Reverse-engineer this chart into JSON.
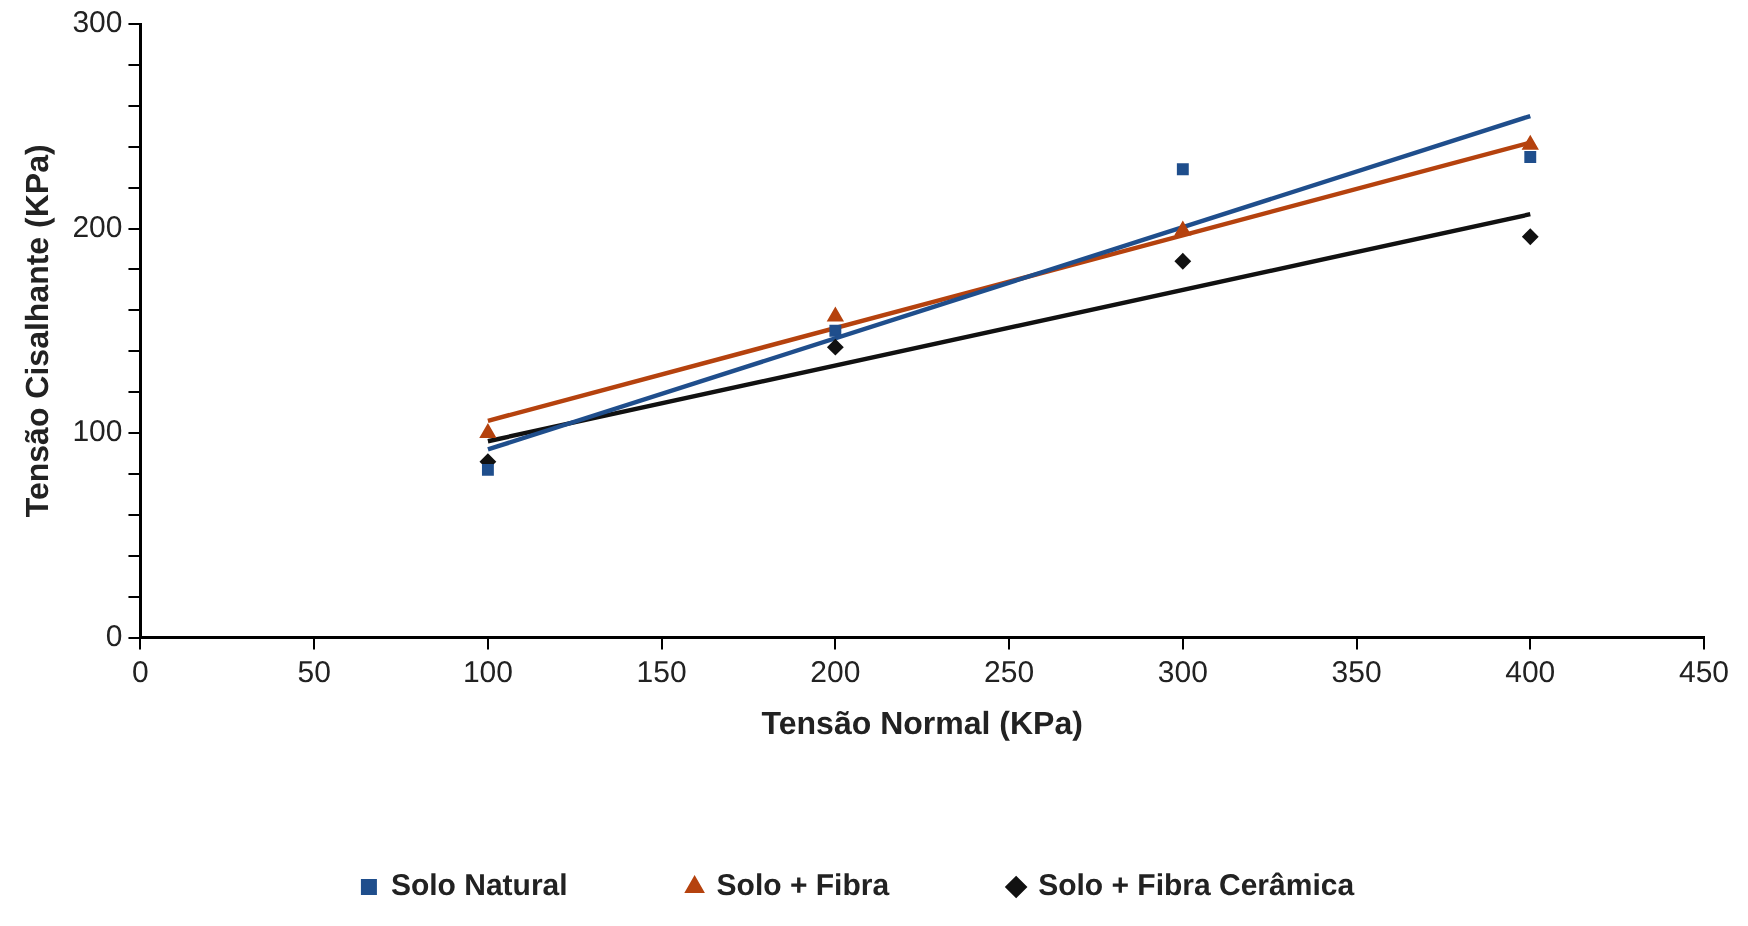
{
  "chart_data": {
    "type": "scatter",
    "xlabel": "Tensão Normal (KPa)",
    "ylabel": "Tensão Cisalhante (KPa)",
    "xlim": [
      0,
      450
    ],
    "xticks": [
      0,
      50,
      100,
      150,
      200,
      250,
      300,
      350,
      400,
      450
    ],
    "ylim": [
      0,
      300
    ],
    "yticks": [
      0,
      {
        "value": 20,
        "label": null
      },
      {
        "value": 40,
        "label": null
      },
      {
        "value": 60,
        "label": null
      },
      {
        "value": 80,
        "label": null
      },
      100,
      {
        "value": 120,
        "label": null
      },
      {
        "value": 140,
        "label": null
      },
      {
        "value": 160,
        "label": null
      },
      {
        "value": 180,
        "label": null
      },
      200,
      {
        "value": 220,
        "label": null
      },
      {
        "value": 240,
        "label": null
      },
      {
        "value": 260,
        "label": null
      },
      {
        "value": 280,
        "label": null
      },
      300
    ],
    "grid": false,
    "legend": "bottom",
    "series": [
      {
        "name": "Solo Natural",
        "marker": "square",
        "color": "#1f4e8c",
        "x": [
          100,
          200,
          300,
          400
        ],
        "values": [
          82,
          150,
          229,
          235
        ]
      },
      {
        "name": "Solo + Fibra",
        "marker": "triangle",
        "color": "#b5420e",
        "x": [
          100,
          200,
          300,
          400
        ],
        "values": [
          100,
          157,
          199,
          241
        ]
      },
      {
        "name": "Solo + Fibra Cerâmica",
        "marker": "diamond",
        "color": "#111111",
        "x": [
          100,
          200,
          300,
          400
        ],
        "values": [
          86,
          142,
          184,
          196
        ]
      },
      {
        "type": "line",
        "marker": "none",
        "color": "#1f4e8c",
        "x": [
          100,
          400
        ],
        "values": [
          92,
          255
        ]
      },
      {
        "type": "line",
        "marker": "none",
        "color": "#b5420e",
        "x": [
          100,
          400
        ],
        "values": [
          106,
          242
        ]
      },
      {
        "type": "line",
        "marker": "none",
        "color": "#111111",
        "x": [
          100,
          400
        ],
        "values": [
          96,
          207
        ]
      }
    ]
  }
}
